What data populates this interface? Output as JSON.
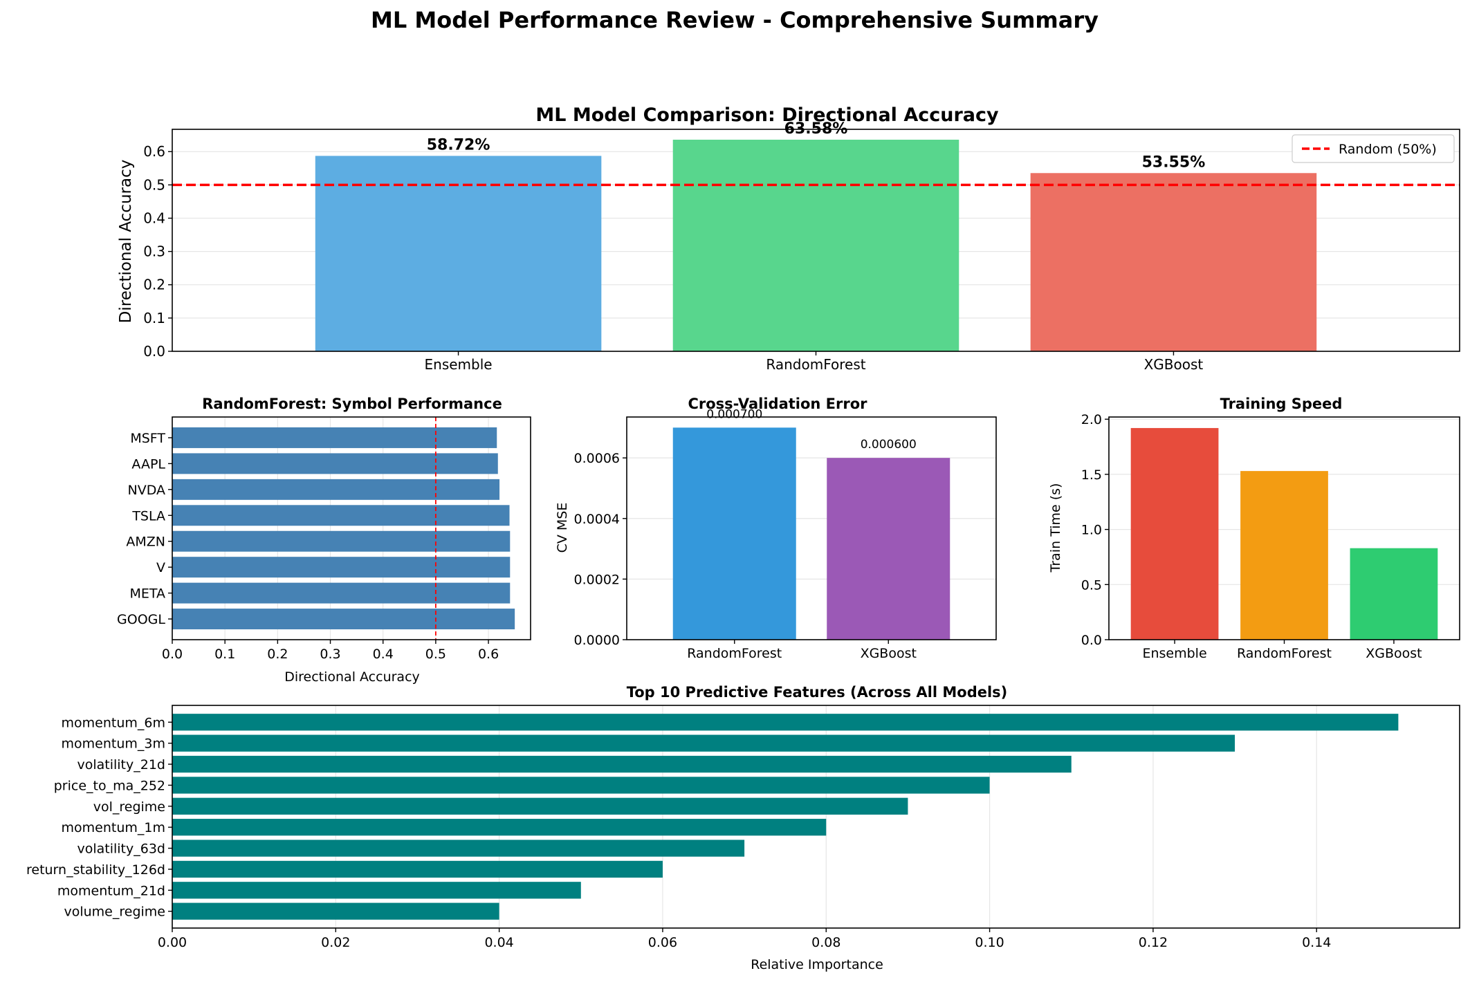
{
  "suptitle": "ML Model Performance Review - Comprehensive Summary",
  "chart_data": [
    {
      "type": "bar",
      "id": "p1",
      "title": "ML Model Comparison: Directional Accuracy",
      "ylabel": "Directional Accuracy",
      "xlabel": "",
      "categories": [
        "Ensemble",
        "RandomForest",
        "XGBoost"
      ],
      "values": [
        0.5872,
        0.6358,
        0.5355
      ],
      "value_labels": [
        "58.72%",
        "63.58%",
        "53.55%"
      ],
      "colors": [
        "#5dade2",
        "#58d68d",
        "#ec7063"
      ],
      "ylim": [
        0,
        0.667
      ],
      "yticks": [
        0.0,
        0.1,
        0.2,
        0.3,
        0.4,
        0.5,
        0.6
      ],
      "ytick_labels": [
        "0.0",
        "0.1",
        "0.2",
        "0.3",
        "0.4",
        "0.5",
        "0.6"
      ],
      "reference_line": {
        "y": 0.5,
        "label": "Random (50%)",
        "color": "#ff0000",
        "style": "dashed"
      },
      "legend": "top-right",
      "grid": "y"
    },
    {
      "type": "barh",
      "id": "p2",
      "title": "RandomForest: Symbol Performance",
      "xlabel": "Directional Accuracy",
      "ylabel": "",
      "categories": [
        "GOOGL",
        "META",
        "V",
        "AMZN",
        "TSLA",
        "NVDA",
        "AAPL",
        "MSFT"
      ],
      "values": [
        0.65,
        0.641,
        0.641,
        0.641,
        0.64,
        0.621,
        0.618,
        0.616
      ],
      "color": "#4682b4",
      "xlim": [
        0,
        0.68
      ],
      "xticks": [
        0.0,
        0.1,
        0.2,
        0.3,
        0.4,
        0.5,
        0.6
      ],
      "xtick_labels": [
        "0.0",
        "0.1",
        "0.2",
        "0.3",
        "0.4",
        "0.5",
        "0.6"
      ],
      "reference_line": {
        "x": 0.5,
        "color": "#ff0000",
        "style": "dashed"
      },
      "grid": "x"
    },
    {
      "type": "bar",
      "id": "p3",
      "title": "Cross-Validation Error",
      "ylabel": "CV MSE",
      "xlabel": "",
      "categories": [
        "RandomForest",
        "XGBoost"
      ],
      "values": [
        0.0007,
        0.0006
      ],
      "value_labels": [
        "0.000700",
        "0.000600"
      ],
      "colors": [
        "#3498db",
        "#9b59b6"
      ],
      "ylim": [
        0,
        0.000735
      ],
      "yticks": [
        0.0,
        0.0002,
        0.0004,
        0.0006
      ],
      "ytick_labels": [
        "0.0000",
        "0.0002",
        "0.0004",
        "0.0006"
      ],
      "grid": "y"
    },
    {
      "type": "bar",
      "id": "p4",
      "title": "Training Speed",
      "ylabel": "Train Time (s)",
      "xlabel": "",
      "categories": [
        "Ensemble",
        "RandomForest",
        "XGBoost"
      ],
      "values": [
        1.92,
        1.53,
        0.83
      ],
      "colors": [
        "#e74c3c",
        "#f39c12",
        "#2ecc71"
      ],
      "ylim": [
        0,
        2.02
      ],
      "yticks": [
        0.0,
        0.5,
        1.0,
        1.5,
        2.0
      ],
      "ytick_labels": [
        "0.0",
        "0.5",
        "1.0",
        "1.5",
        "2.0"
      ],
      "grid": "y"
    },
    {
      "type": "barh",
      "id": "p5",
      "title": "Top 10 Predictive Features (Across All Models)",
      "xlabel": "Relative Importance",
      "ylabel": "",
      "categories": [
        "volume_regime",
        "momentum_21d",
        "return_stability_126d",
        "volatility_63d",
        "momentum_1m",
        "vol_regime",
        "price_to_ma_252",
        "volatility_21d",
        "momentum_3m",
        "momentum_6m"
      ],
      "values": [
        0.04,
        0.05,
        0.06,
        0.07,
        0.08,
        0.09,
        0.1,
        0.11,
        0.13,
        0.15
      ],
      "color": "#008080",
      "xlim": [
        0,
        0.1575
      ],
      "xticks": [
        0.0,
        0.02,
        0.04,
        0.06,
        0.08,
        0.1,
        0.12,
        0.14
      ],
      "xtick_labels": [
        "0.00",
        "0.02",
        "0.04",
        "0.06",
        "0.08",
        "0.10",
        "0.12",
        "0.14"
      ],
      "grid": "x"
    }
  ]
}
